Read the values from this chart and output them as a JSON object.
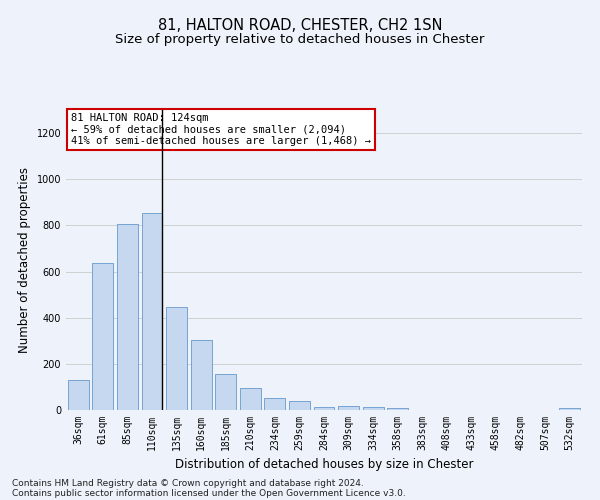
{
  "title": "81, HALTON ROAD, CHESTER, CH2 1SN",
  "subtitle": "Size of property relative to detached houses in Chester",
  "xlabel": "Distribution of detached houses by size in Chester",
  "ylabel": "Number of detached properties",
  "footer_line1": "Contains HM Land Registry data © Crown copyright and database right 2024.",
  "footer_line2": "Contains public sector information licensed under the Open Government Licence v3.0.",
  "bar_labels": [
    "36sqm",
    "61sqm",
    "85sqm",
    "110sqm",
    "135sqm",
    "160sqm",
    "185sqm",
    "210sqm",
    "234sqm",
    "259sqm",
    "284sqm",
    "309sqm",
    "334sqm",
    "358sqm",
    "383sqm",
    "408sqm",
    "433sqm",
    "458sqm",
    "482sqm",
    "507sqm",
    "532sqm"
  ],
  "bar_values": [
    130,
    635,
    805,
    855,
    445,
    305,
    158,
    95,
    50,
    38,
    15,
    18,
    15,
    8,
    2,
    2,
    2,
    2,
    0,
    0,
    8
  ],
  "bar_color": "#c5d8f0",
  "bar_edgecolor": "#6699cc",
  "highlight_index": 3,
  "highlight_line_color": "#000000",
  "annotation_box_text": "81 HALTON ROAD: 124sqm\n← 59% of detached houses are smaller (2,094)\n41% of semi-detached houses are larger (1,468) →",
  "annotation_box_edgecolor": "#cc0000",
  "annotation_box_facecolor": "#ffffff",
  "ylim": [
    0,
    1300
  ],
  "yticks": [
    0,
    200,
    400,
    600,
    800,
    1000,
    1200
  ],
  "grid_color": "#d0d0d0",
  "background_color": "#eef2fa",
  "title_fontsize": 10.5,
  "subtitle_fontsize": 9.5,
  "axis_label_fontsize": 8.5,
  "tick_fontsize": 7,
  "annotation_fontsize": 7.5
}
